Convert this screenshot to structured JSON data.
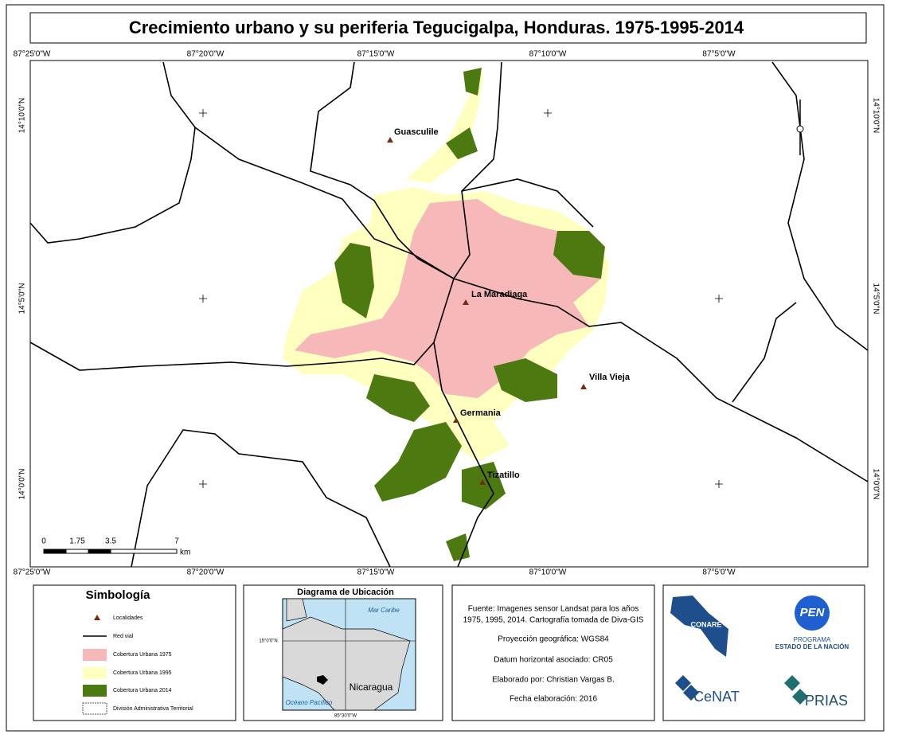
{
  "header": {
    "title": "Crecimiento urbano y su periferia Tegucigalpa, Honduras. 1975-1995-2014"
  },
  "coordinates": {
    "longitudes": [
      "87°25'0\"W",
      "87°20'0\"W",
      "87°15'0\"W",
      "87°10'0\"W",
      "87°5'0\"W"
    ],
    "latitudes": [
      "14°10'0\"N",
      "14°5'0\"N",
      "14°0'0\"N"
    ]
  },
  "places": [
    "Guasculile",
    "La Maradiaga",
    "Villa Vieja",
    "Germania",
    "Tizatillo"
  ],
  "scale": {
    "labels": [
      "0",
      "1.75",
      "3.5",
      "7"
    ],
    "unit": "km"
  },
  "legend": {
    "title": "Simbología",
    "items": [
      "Localidades",
      "Red vial",
      "Cobertura Urbana 1975",
      "Cobertura Urbana 1995",
      "Cobertura Urbana 2014",
      "División Administrativa Territorial"
    ]
  },
  "locator": {
    "title": "Diagrama de Ubicación",
    "sea_north": "Mar Caribe",
    "sea_south": "Océano Pacífico",
    "country": "Nicaragua",
    "latitude": "15°0'0\"N",
    "longitude": "85°30'0\"W"
  },
  "info": {
    "lines": [
      "Fuente: Imagenes sensor Landsat para los años",
      "1975, 1995, 2014. Cartografía tomada de Diva-GIS",
      "Proyección geográfica: WGS84",
      "Datum horizontal asociado: CR05",
      "Elaborado por: Christian Vargas B.",
      "Fecha elaboración: 2016"
    ]
  },
  "logos": {
    "conare": "CONARE",
    "pen": "PEN",
    "pen_line1": "PROGRAMA",
    "pen_line2": "ESTADO DE LA NACIÓN",
    "cenat": "CeNAT",
    "prias": "PRIAS"
  }
}
